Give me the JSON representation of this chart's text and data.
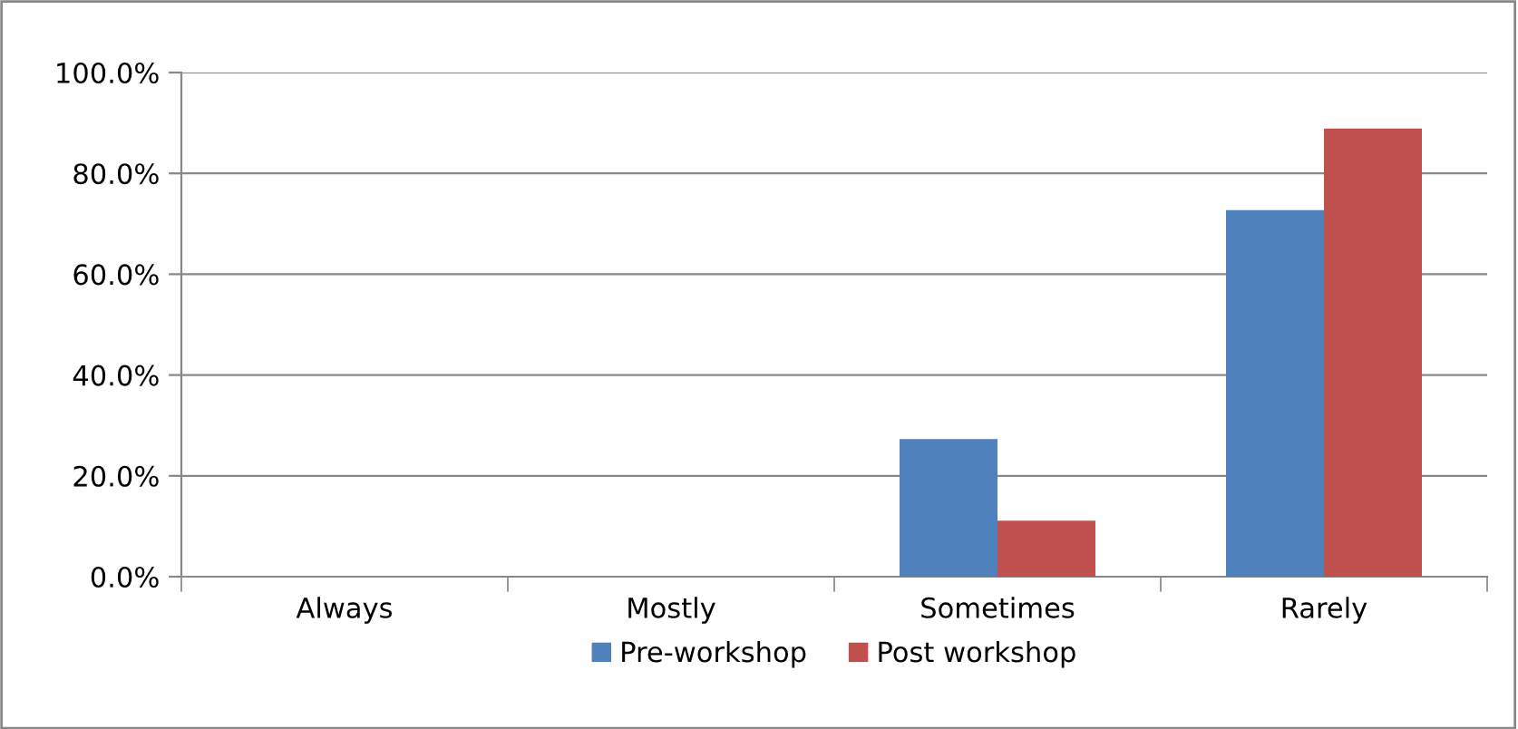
{
  "chart_data": {
    "type": "bar",
    "categories": [
      "Always",
      "Mostly",
      "Sometimes",
      "Rarely"
    ],
    "series": [
      {
        "name": "Pre-workshop",
        "color": "#4f81bd",
        "values": [
          0,
          0,
          27.3,
          72.7
        ]
      },
      {
        "name": "Post workshop",
        "color": "#c0504d",
        "values": [
          0,
          0,
          11.1,
          88.9
        ]
      }
    ],
    "ylim": [
      0,
      100
    ],
    "yticks": [
      {
        "value": 0,
        "label": "0.0%"
      },
      {
        "value": 20,
        "label": "20.0%"
      },
      {
        "value": 40,
        "label": "40.0%"
      },
      {
        "value": 60,
        "label": "60.0%"
      },
      {
        "value": 80,
        "label": "80.0%"
      },
      {
        "value": 100,
        "label": "100.0%"
      }
    ],
    "grid": "y",
    "legend": "bottom"
  }
}
